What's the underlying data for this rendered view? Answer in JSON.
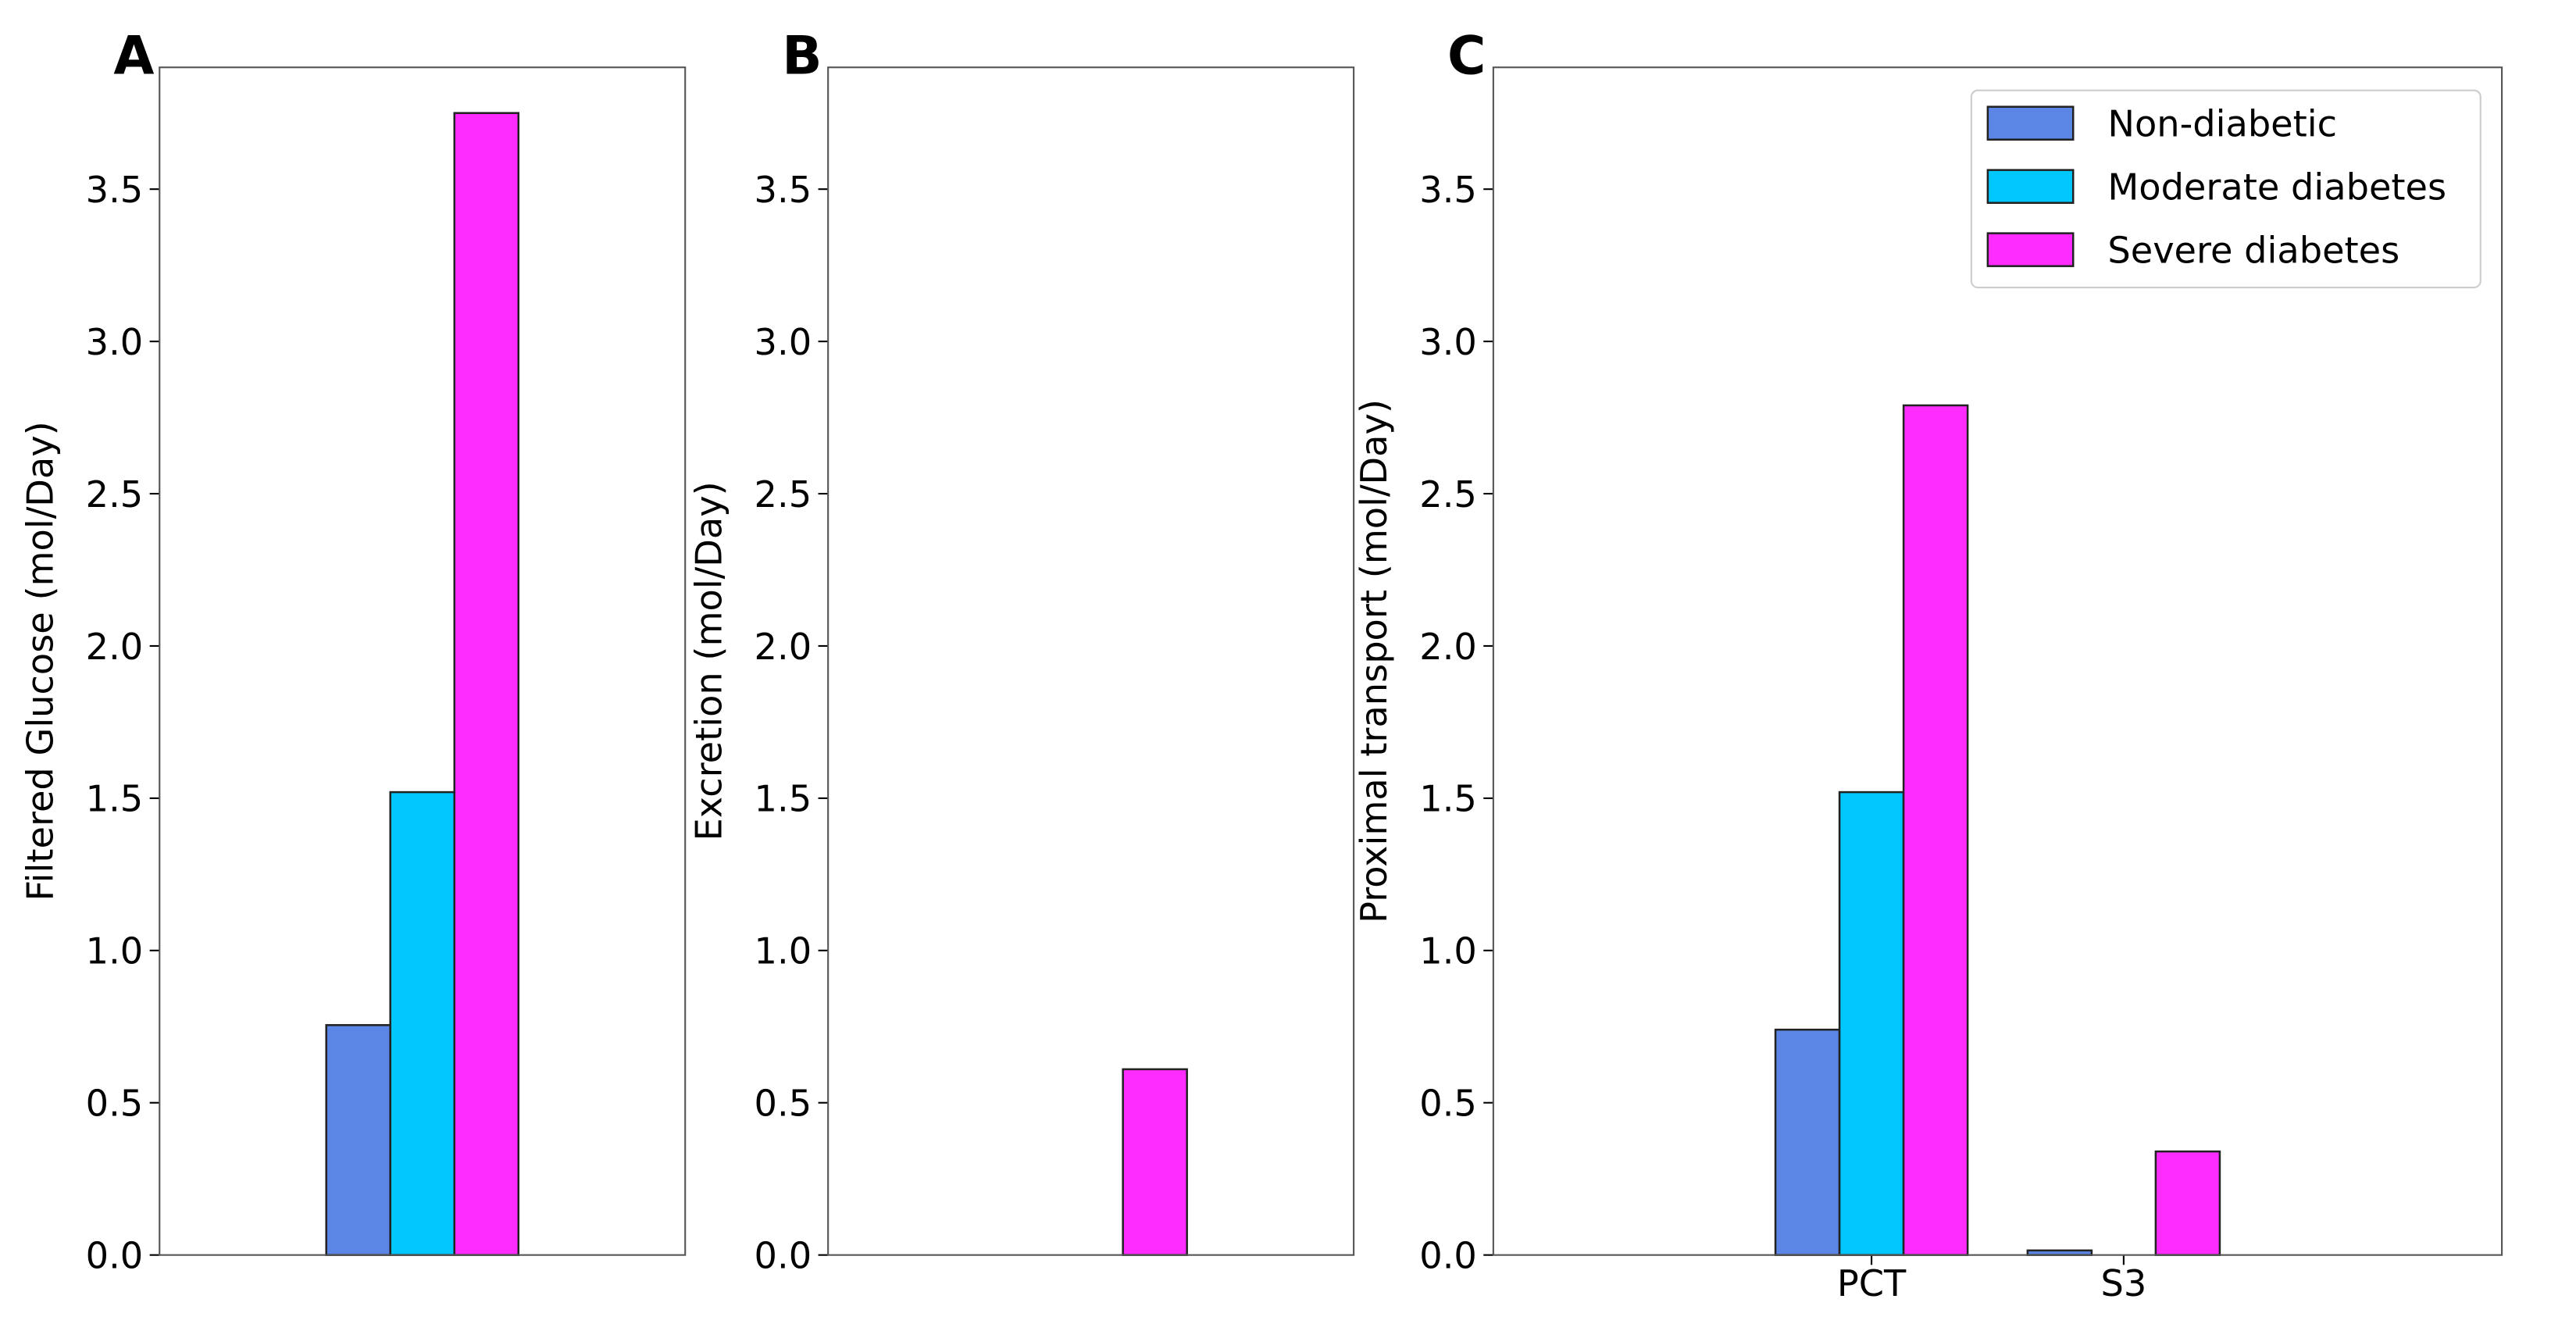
{
  "chart_data": [
    {
      "type": "bar",
      "title": "A",
      "y_label": "Filtered Glucose (mol/Day)",
      "categories": [
        null,
        null,
        null
      ],
      "series": [
        {
          "name": "Non-diabetic",
          "color": "#5b86e5",
          "values": [
            0,
            0.755,
            0
          ]
        },
        {
          "name": "Moderate diabetes",
          "color": "#00c8ff",
          "values": [
            0,
            1.52,
            0
          ]
        },
        {
          "name": "Severe diabetes",
          "color": "#ff2cff",
          "values": [
            0,
            3.75,
            0
          ]
        }
      ],
      "ylim": [
        0,
        3.9
      ],
      "yticks": [
        {
          "value": 0,
          "label": "0.0"
        },
        0.5,
        {
          "value": 1,
          "label": "1.0"
        },
        1.5,
        {
          "value": 2,
          "label": "2.0"
        },
        2.5,
        {
          "value": 3,
          "label": "3.0"
        },
        3.5
      ]
    },
    {
      "type": "bar",
      "title": "B",
      "y_label": "Excretion (mol/Day)",
      "categories": [
        null,
        null,
        null
      ],
      "series": [
        {
          "name": "Non-diabetic",
          "color": "#5b86e5",
          "values": [
            0,
            0,
            0
          ]
        },
        {
          "name": "Moderate diabetes",
          "color": "#00c8ff",
          "values": [
            0,
            0,
            0
          ]
        },
        {
          "name": "Severe diabetes",
          "color": "#ff2cff",
          "values": [
            0,
            0.61,
            0
          ]
        }
      ],
      "ylim": [
        0,
        3.9
      ],
      "yticks": [
        {
          "value": 0,
          "label": "0.0"
        },
        0.5,
        {
          "value": 1,
          "label": "1.0"
        },
        1.5,
        {
          "value": 2,
          "label": "2.0"
        },
        2.5,
        {
          "value": 3,
          "label": "3.0"
        },
        3.5
      ]
    },
    {
      "type": "bar",
      "title": "C",
      "y_label": "Proximal transport (mol/Day)",
      "categories": [
        null,
        "PCT",
        "S3",
        null
      ],
      "series": [
        {
          "name": "Non-diabetic",
          "color": "#5b86e5",
          "values": [
            0,
            0.74,
            0.015,
            0
          ]
        },
        {
          "name": "Moderate diabetes",
          "color": "#00c8ff",
          "values": [
            0,
            1.52,
            0,
            0
          ]
        },
        {
          "name": "Severe diabetes",
          "color": "#ff2cff",
          "values": [
            0,
            2.79,
            0.34,
            0
          ]
        }
      ],
      "ylim": [
        0,
        3.9
      ],
      "yticks": [
        {
          "value": 0,
          "label": "0.0"
        },
        0.5,
        {
          "value": 1,
          "label": "1.0"
        },
        1.5,
        {
          "value": 2,
          "label": "2.0"
        },
        2.5,
        {
          "value": 3,
          "label": "3.0"
        },
        3.5
      ],
      "legend": "upper right"
    }
  ]
}
